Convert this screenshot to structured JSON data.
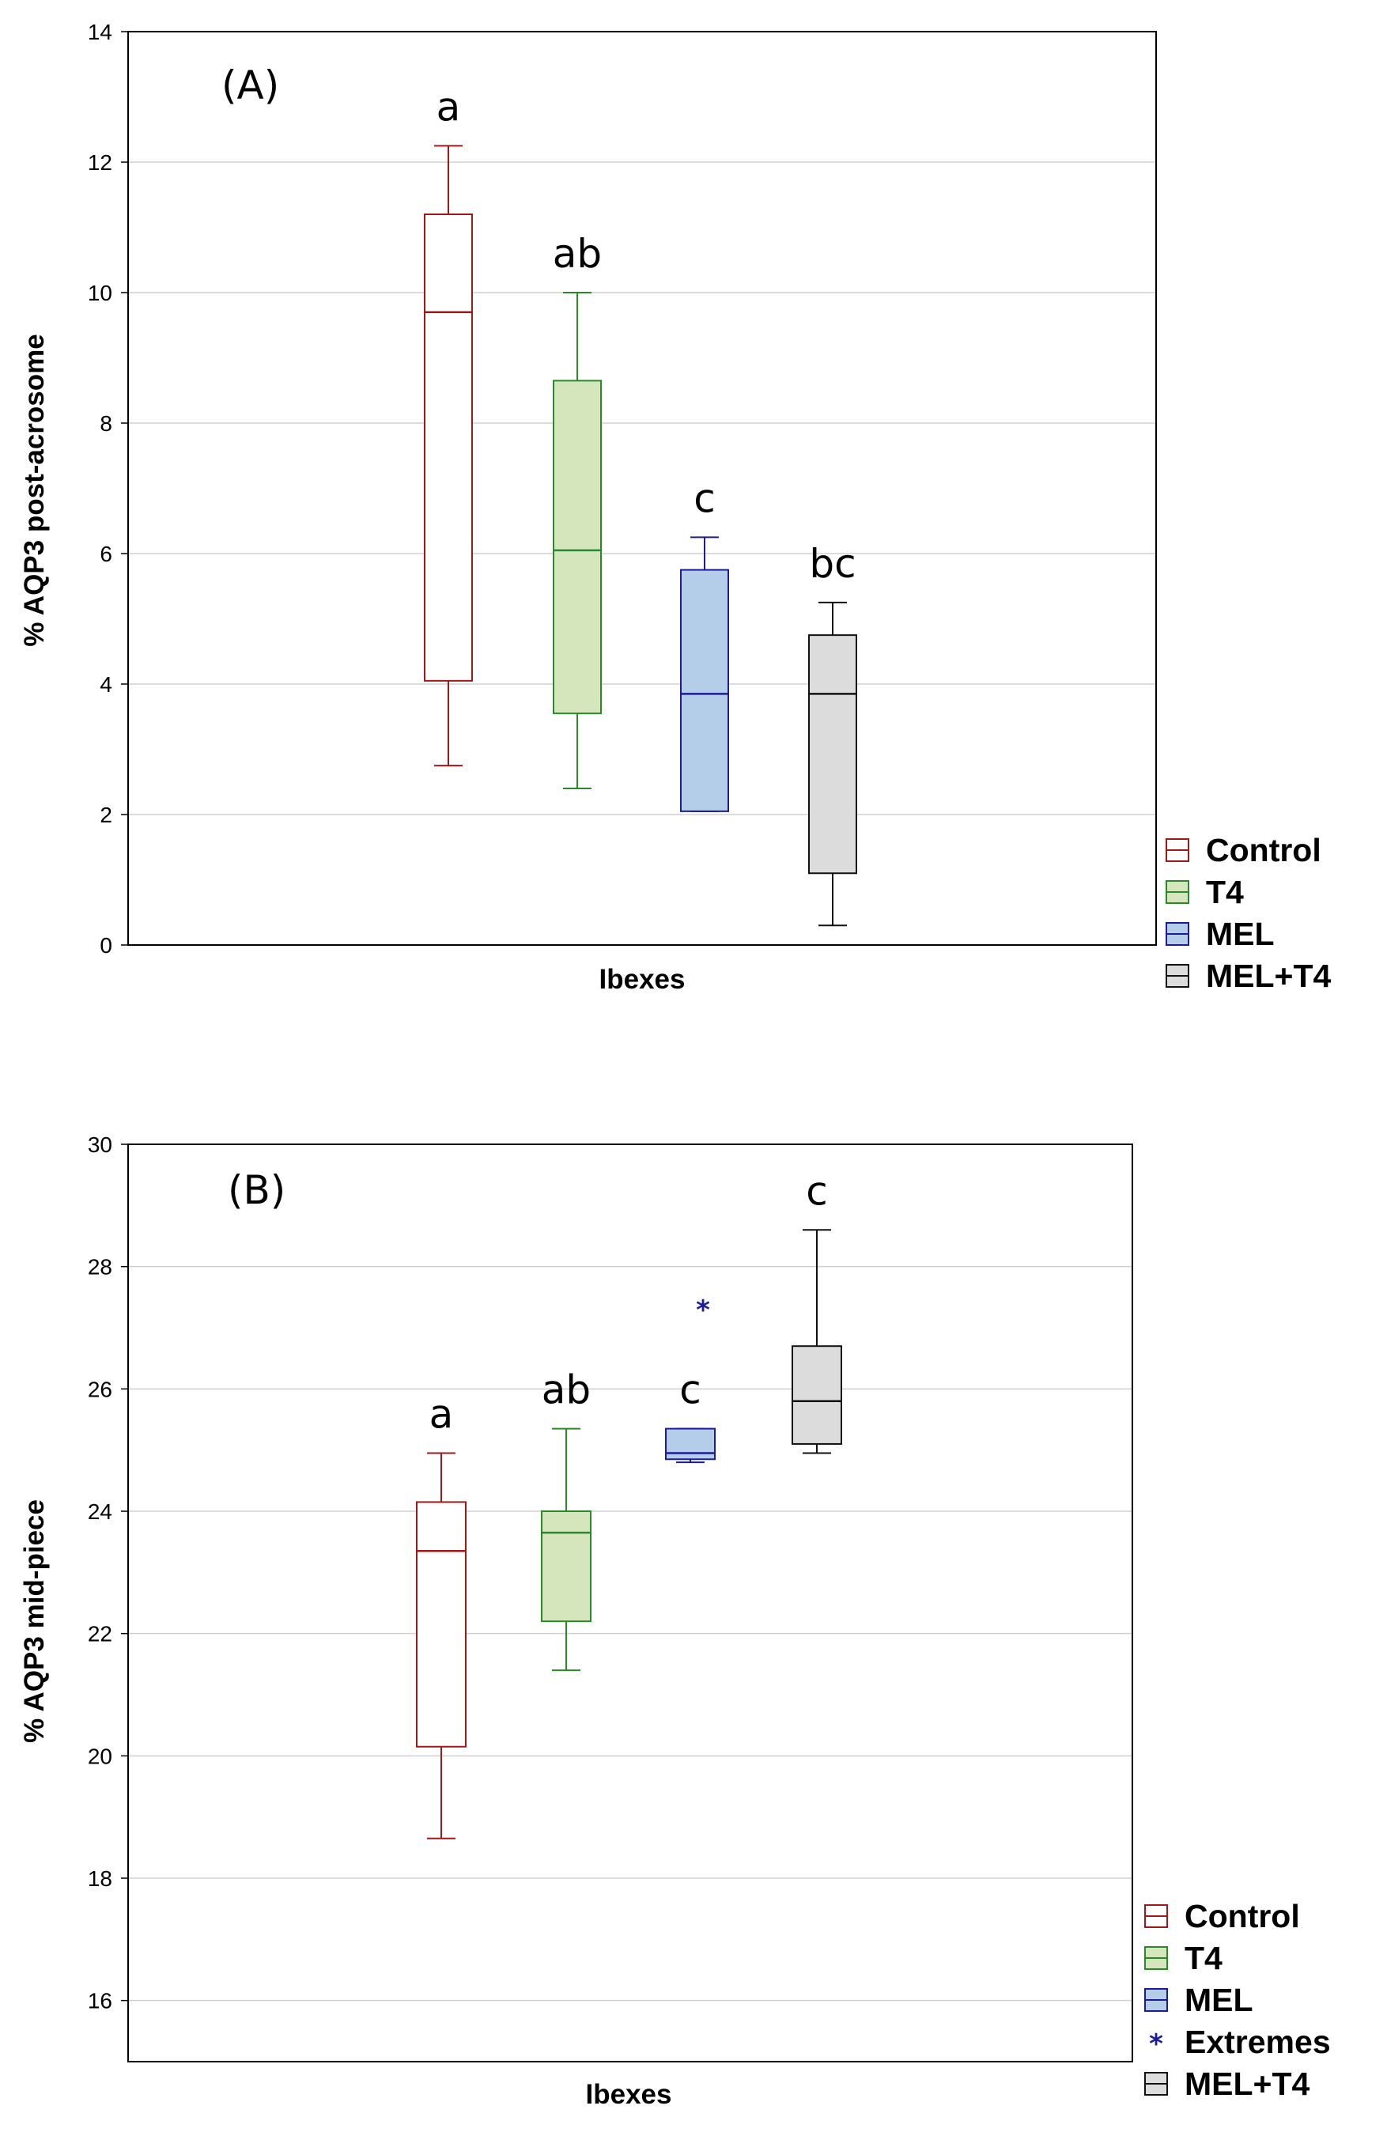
{
  "chart_data": [
    {
      "type": "box",
      "panel_label": "(A)",
      "xlabel": "Ibexes",
      "ylabel": "% AQP3 post-acrosome",
      "ylim": [
        0,
        14
      ],
      "yticks": [
        0,
        2,
        4,
        6,
        8,
        10,
        12,
        14
      ],
      "grid": true,
      "legend_position": "bottom-right outside",
      "series": [
        {
          "name": "Control",
          "color": "#a01818",
          "fill": "#ffffff",
          "min": 2.75,
          "q1": 4.05,
          "median": 9.7,
          "q3": 11.2,
          "max": 12.25,
          "letter": "a",
          "outliers": []
        },
        {
          "name": "T4",
          "color": "#2a8a2a",
          "fill": "#d5e6bd",
          "min": 2.4,
          "q1": 3.55,
          "median": 6.05,
          "q3": 8.65,
          "max": 10.0,
          "letter": "ab",
          "outliers": []
        },
        {
          "name": "MEL",
          "color": "#1c1c9a",
          "fill": "#b4cde8",
          "min": 2.05,
          "q1": 2.05,
          "median": 3.85,
          "q3": 5.75,
          "max": 6.25,
          "letter": "c",
          "outliers": []
        },
        {
          "name": "MEL+T4",
          "color": "#111111",
          "fill": "#dcdcdc",
          "min": 0.3,
          "q1": 1.1,
          "median": 3.85,
          "q3": 4.75,
          "max": 5.25,
          "letter": "bc",
          "outliers": []
        }
      ],
      "legend": [
        {
          "label": "Control",
          "kind": "box",
          "color": "#a01818",
          "fill": "#ffffff"
        },
        {
          "label": "T4",
          "kind": "box",
          "color": "#2a8a2a",
          "fill": "#d5e6bd"
        },
        {
          "label": "MEL",
          "kind": "box",
          "color": "#1c1c9a",
          "fill": "#b4cde8"
        },
        {
          "label": "MEL+T4",
          "kind": "box",
          "color": "#111111",
          "fill": "#dcdcdc"
        }
      ]
    },
    {
      "type": "box",
      "panel_label": "(B)",
      "xlabel": "Ibexes",
      "ylabel": "% AQP3 mid-piece",
      "ylim": [
        15,
        30
      ],
      "yticks": [
        16,
        18,
        20,
        22,
        24,
        26,
        28,
        30
      ],
      "grid": true,
      "legend_position": "bottom-right outside",
      "series": [
        {
          "name": "Control",
          "color": "#a01818",
          "fill": "#ffffff",
          "min": 18.65,
          "q1": 20.15,
          "median": 23.35,
          "q3": 24.15,
          "max": 24.95,
          "letter": "a",
          "outliers": []
        },
        {
          "name": "T4",
          "color": "#2a8a2a",
          "fill": "#d5e6bd",
          "min": 21.4,
          "q1": 22.2,
          "median": 23.65,
          "q3": 24.0,
          "max": 25.35,
          "letter": "ab",
          "outliers": []
        },
        {
          "name": "MEL",
          "color": "#1c1c9a",
          "fill": "#b4cde8",
          "min": 24.8,
          "q1": 24.85,
          "median": 24.95,
          "q3": 25.35,
          "max": 25.35,
          "letter": "c",
          "outliers": [
            27.35
          ]
        },
        {
          "name": "MEL+T4",
          "color": "#111111",
          "fill": "#dcdcdc",
          "min": 24.95,
          "q1": 25.1,
          "median": 25.8,
          "q3": 26.7,
          "max": 28.6,
          "letter": "c",
          "outliers": []
        }
      ],
      "legend": [
        {
          "label": "Control",
          "kind": "box",
          "color": "#a01818",
          "fill": "#ffffff"
        },
        {
          "label": "T4",
          "kind": "box",
          "color": "#2a8a2a",
          "fill": "#d5e6bd"
        },
        {
          "label": "MEL",
          "kind": "box",
          "color": "#1c1c9a",
          "fill": "#b4cde8"
        },
        {
          "label": "Extremes",
          "kind": "marker",
          "color": "#1c1c9a",
          "fill": "#1c1c9a"
        },
        {
          "label": "MEL+T4",
          "kind": "box",
          "color": "#111111",
          "fill": "#dcdcdc"
        }
      ]
    }
  ]
}
